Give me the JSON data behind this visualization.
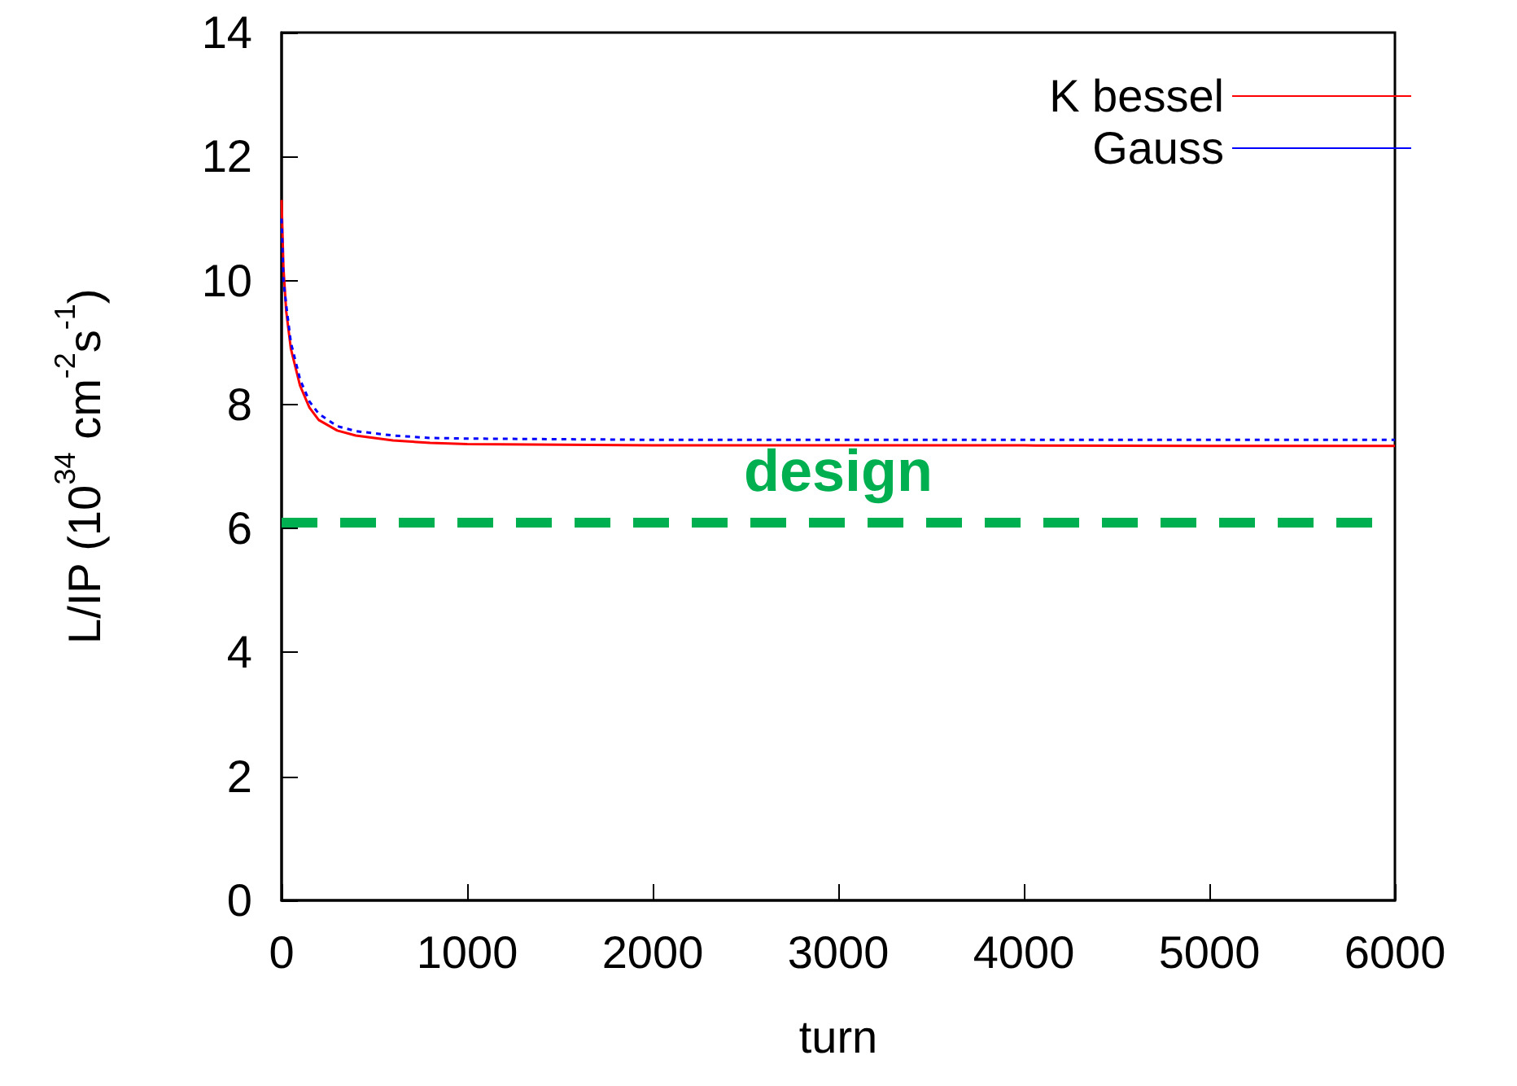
{
  "chart_data": {
    "type": "line",
    "xlabel": "turn",
    "ylabel": "L/IP (10$^{34}$ cm$^{-2}$s$^{-1}$)",
    "xlim": [
      0,
      6000
    ],
    "xticks": [
      0,
      1000,
      2000,
      3000,
      4000,
      5000,
      6000
    ],
    "ylim": [
      0,
      14
    ],
    "yticks": [
      0,
      2,
      4,
      6,
      8,
      10,
      12,
      14
    ],
    "grid": false,
    "legend": "top right",
    "marker": "none",
    "series": [
      {
        "name": "K bessel",
        "color": "#ff0000",
        "line_style": "solid",
        "x": [
          0,
          10,
          25,
          50,
          100,
          150,
          200,
          300,
          400,
          600,
          800,
          1000,
          1500,
          2000,
          3000,
          4000,
          5000,
          6000
        ],
        "values": [
          11.3,
          10.2,
          9.5,
          8.9,
          8.3,
          7.95,
          7.75,
          7.58,
          7.5,
          7.42,
          7.38,
          7.36,
          7.35,
          7.34,
          7.34,
          7.34,
          7.33,
          7.33
        ]
      },
      {
        "name": "Gauss",
        "color": "#0000ff",
        "line_style": "dotted",
        "x": [
          0,
          10,
          25,
          50,
          100,
          150,
          200,
          300,
          400,
          600,
          800,
          1000,
          1500,
          2000,
          3000,
          4000,
          5000,
          6000
        ],
        "values": [
          11.0,
          10.0,
          9.6,
          9.0,
          8.4,
          8.05,
          7.85,
          7.65,
          7.57,
          7.5,
          7.46,
          7.45,
          7.44,
          7.43,
          7.43,
          7.43,
          7.43,
          7.43
        ]
      }
    ],
    "ref_lines": [
      {
        "axis": "y",
        "value": 6.1,
        "label": "design",
        "color": "#00b050",
        "line_style": "dashed"
      }
    ]
  }
}
